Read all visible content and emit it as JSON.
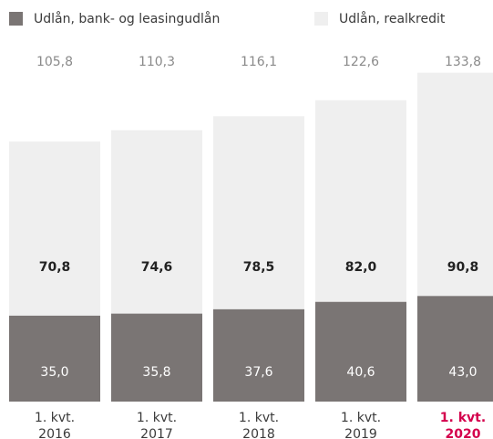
{
  "chart_data": {
    "type": "stacked_bar",
    "categories": [
      "1. kvt.\n2016",
      "1. kvt.\n2017",
      "1. kvt.\n2018",
      "1. kvt.\n2019",
      "1. kvt.\n2020"
    ],
    "category_label_colors": [
      "#3a3a3a",
      "#3a3a3a",
      "#3a3a3a",
      "#3a3a3a",
      "#d4004c"
    ],
    "series": [
      {
        "name": "Udlån, bank- og leasingudlån",
        "color": "#7a7574",
        "values": [
          35.0,
          35.8,
          37.6,
          40.6,
          43.0
        ],
        "value_labels": [
          "35,0",
          "35,8",
          "37,6",
          "40,6",
          "43,0"
        ]
      },
      {
        "name": "Udlån, realkredit",
        "color": "#efefef",
        "values": [
          70.8,
          74.6,
          78.5,
          82.0,
          90.8
        ],
        "value_labels": [
          "70,8",
          "74,6",
          "78,5",
          "82,0",
          "90,8"
        ]
      }
    ],
    "totals": {
      "values": [
        105.8,
        110.3,
        116.1,
        122.6,
        133.8
      ],
      "value_labels": [
        "105,8",
        "110,3",
        "116,1",
        "122,6",
        "133,8"
      ]
    },
    "ylim": [
      0,
      150
    ]
  }
}
